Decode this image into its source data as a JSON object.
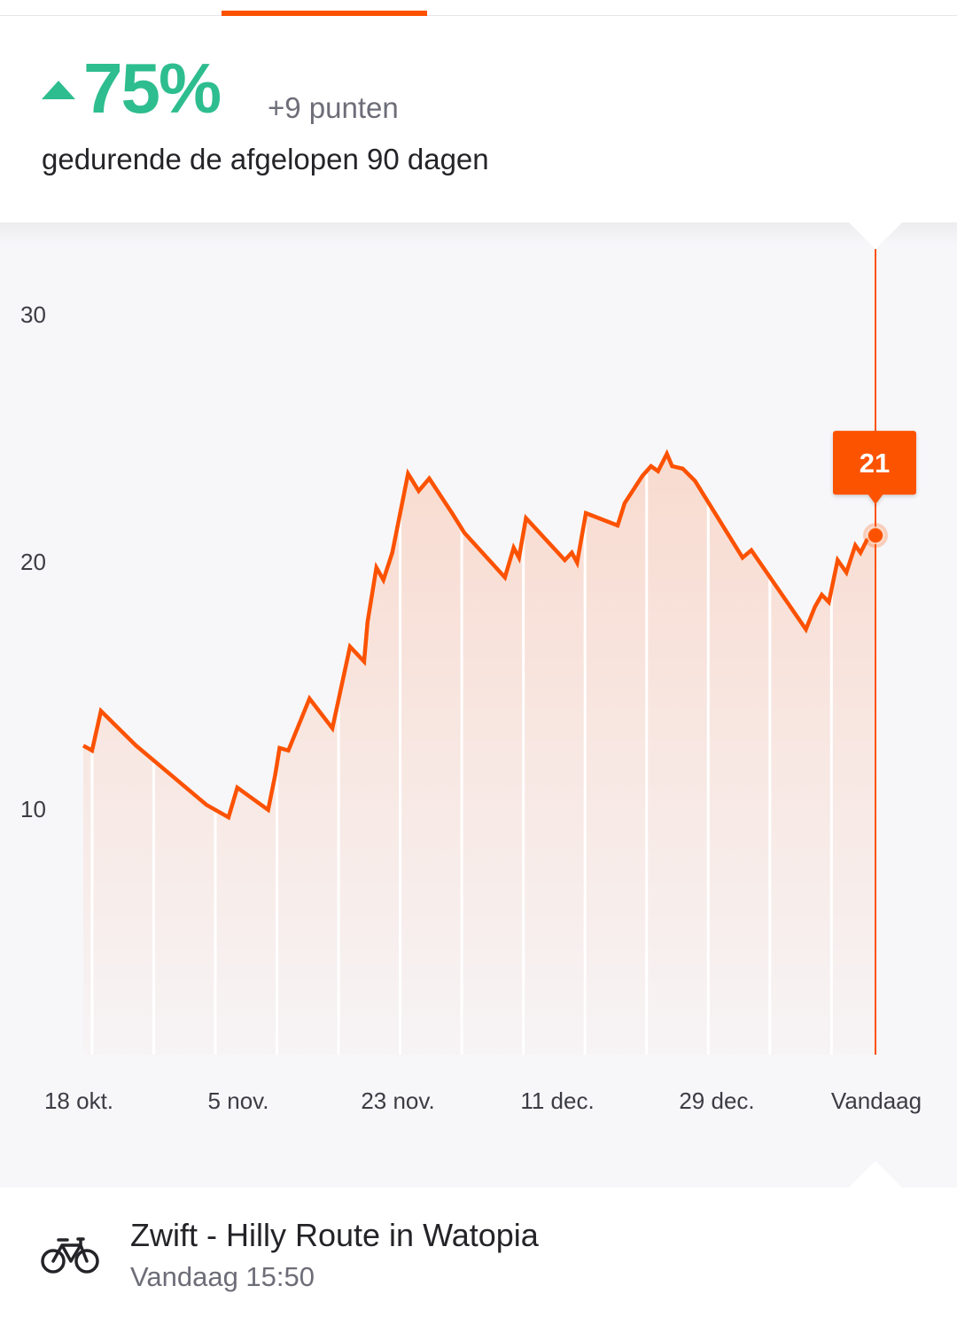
{
  "summary": {
    "change_percent": "75%",
    "points_change": "+9 punten",
    "period_label": "gedurende de afgelopen 90 dagen",
    "trend": "up"
  },
  "colors": {
    "accent": "#fc5200",
    "positive": "#2ebd8e",
    "panel_bg": "#f7f7fa",
    "text": "#242428",
    "muted": "#6d6d78"
  },
  "chart_data": {
    "type": "area",
    "title": "",
    "xlabel": "",
    "ylabel": "",
    "ylim": [
      0,
      30
    ],
    "yticks": [
      10,
      20,
      30
    ],
    "x_tick_labels": [
      "18 okt.",
      "5 nov.",
      "23 nov.",
      "11 dec.",
      "29 dec.",
      "Vandaag"
    ],
    "x_range_days": [
      0,
      90
    ],
    "x_tick_days": [
      0,
      18,
      36,
      54,
      72,
      90
    ],
    "grid": false,
    "series": [
      {
        "x_days": [
          0,
          1,
          2,
          6,
          10,
          14,
          16.5,
          17.5,
          21,
          21.8,
          22.3,
          23.3,
          25.7,
          27,
          28.3,
          30.3,
          31.9,
          32.3,
          33.3,
          34.1,
          35.1,
          36.9,
          38.1,
          39.3,
          41.9,
          43.3,
          47.9,
          48.9,
          49.5,
          50.3,
          54.7,
          55.5,
          56.1,
          57.1,
          60.7,
          61.5,
          63.5,
          64.5,
          65.3,
          66.3,
          66.9,
          68.1,
          69.5,
          74.9,
          75.9,
          82.1,
          83.1,
          83.9,
          84.7,
          85.7,
          86.7,
          87.7,
          88.3,
          89,
          90
        ],
        "y": [
          12.5,
          12.3,
          13.9,
          12.5,
          11.3,
          10.1,
          9.6,
          10.8,
          9.9,
          11.3,
          12.4,
          12.3,
          14.4,
          13.8,
          13.2,
          16.5,
          15.9,
          17.5,
          19.7,
          19.2,
          20.3,
          23.5,
          22.8,
          23.3,
          21.9,
          21.1,
          19.3,
          20.5,
          20.1,
          21.7,
          20.0,
          20.3,
          19.9,
          21.9,
          21.4,
          22.3,
          23.4,
          23.8,
          23.6,
          24.3,
          23.8,
          23.7,
          23.2,
          20.1,
          20.4,
          17.2,
          18.1,
          18.6,
          18.3,
          20.0,
          19.5,
          20.6,
          20.3,
          20.8,
          21.0
        ]
      }
    ],
    "selected": {
      "x_label": "Vandaag",
      "value": "21"
    }
  },
  "activity": {
    "icon": "bicycle-icon",
    "title": "Zwift - Hilly Route in Watopia",
    "time": "Vandaag 15:50"
  }
}
